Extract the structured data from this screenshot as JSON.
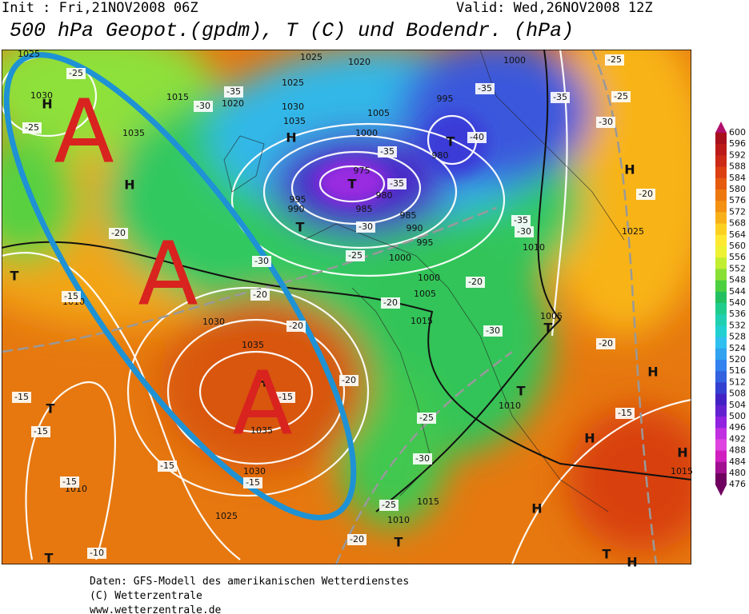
{
  "header": {
    "init": "Init : Fri,21NOV2008 06Z",
    "valid": "Valid: Wed,26NOV2008 12Z",
    "title": "500 hPa Geopot.(gpdm), T (C) und Bodendr. (hPa)"
  },
  "map": {
    "isobar_labels": [
      "1025",
      "1025",
      "1020",
      "1000",
      "1030",
      "1015",
      "1020",
      "1025",
      "1030",
      "1035",
      "1005",
      "995",
      "1000",
      "1035",
      "980",
      "975",
      "980",
      "985",
      "985",
      "990",
      "995",
      "990",
      "995",
      "1000",
      "1000",
      "1005",
      "1010",
      "1025",
      "1015",
      "1005",
      "1010",
      "1030",
      "1035",
      "1035",
      "1030",
      "1010",
      "1015",
      "1010",
      "1025",
      "1010",
      "1015"
    ],
    "temperature_labels": [
      "-25",
      "-25",
      "-30",
      "-35",
      "-35",
      "-35",
      "-40",
      "-35",
      "-35",
      "-30",
      "-35",
      "-30",
      "-25",
      "-30",
      "-20",
      "-20",
      "-20",
      "-20",
      "-20",
      "-15",
      "-20",
      "-20",
      "-25",
      "-30",
      "-15",
      "-15",
      "-15",
      "-15",
      "-15",
      "-15",
      "-25",
      "-20",
      "-10",
      "-15",
      "-20",
      "-30",
      "-25",
      "-25",
      "-30"
    ],
    "pressure_centers": [
      "H",
      "H",
      "H",
      "T",
      "T",
      "T",
      "H",
      "T",
      "T",
      "H",
      "T",
      "T",
      "H",
      "H",
      "H",
      "T",
      "T",
      "T",
      "H",
      "H"
    ],
    "annotations": [
      "A",
      "A",
      "A"
    ]
  },
  "colorbar": {
    "levels": [
      600,
      596,
      592,
      588,
      584,
      580,
      576,
      572,
      568,
      564,
      560,
      556,
      552,
      548,
      544,
      540,
      536,
      532,
      528,
      524,
      520,
      516,
      512,
      508,
      504,
      500,
      496,
      492,
      488,
      484,
      480,
      476
    ],
    "colors": [
      "#b0106a",
      "#a8101c",
      "#bc1a18",
      "#cc2a16",
      "#dc4012",
      "#e65a10",
      "#ee7810",
      "#f49012",
      "#f8b018",
      "#fcd020",
      "#ffe830",
      "#eef232",
      "#c2ee30",
      "#88e034",
      "#4cd040",
      "#22c060",
      "#20cc8c",
      "#20d0b0",
      "#22d0d2",
      "#30c0f0",
      "#30a2f0",
      "#3282f0",
      "#3262e0",
      "#3440d0",
      "#4222c4",
      "#6222d0",
      "#9022e0",
      "#c030e0",
      "#e044e0",
      "#d020c0",
      "#a01090",
      "#700060"
    ]
  },
  "footer": {
    "lines": [
      "Daten: GFS-Modell des amerikanischen Wetterdienstes",
      "(C) Wetterzentrale",
      "www.wetterzentrale.de"
    ]
  }
}
